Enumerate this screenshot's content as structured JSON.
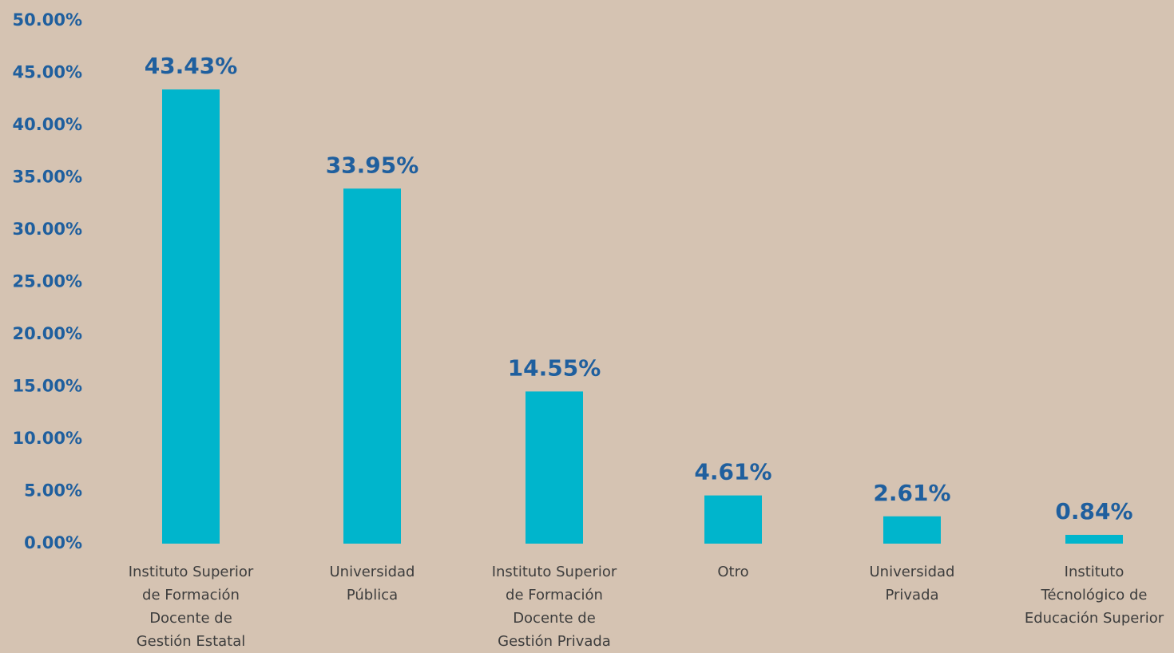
{
  "chart_data": {
    "type": "bar",
    "categories": [
      "Instituto Superior\nde Formación\nDocente de\nGestión Estatal",
      "Universidad\nPública",
      "Instituto Superior\nde Formación\nDocente de\nGestión Privada",
      "Otro",
      "Universidad\nPrivada",
      "Instituto\nTécnológico de\nEducación Superior"
    ],
    "values": [
      43.43,
      33.95,
      14.55,
      4.61,
      2.61,
      0.84
    ],
    "value_labels": [
      "43.43%",
      "33.95%",
      "14.55%",
      "4.61%",
      "2.61%",
      "0.84%"
    ],
    "color": "#00b5cc",
    "ylim": [
      0,
      50
    ],
    "yticks": [
      {
        "value": 0,
        "label": "0.00%"
      },
      {
        "value": 5,
        "label": "5.00%"
      },
      {
        "value": 10,
        "label": "10.00%"
      },
      {
        "value": 15,
        "label": "15.00%"
      },
      {
        "value": 20,
        "label": "20.00%"
      },
      {
        "value": 25,
        "label": "25.00%"
      },
      {
        "value": 30,
        "label": "30.00%"
      },
      {
        "value": 35,
        "label": "35.00%"
      },
      {
        "value": 40,
        "label": "40.00%"
      },
      {
        "value": 45,
        "label": "45.00%"
      },
      {
        "value": 50,
        "label": "50.00%"
      }
    ],
    "grid": false
  }
}
